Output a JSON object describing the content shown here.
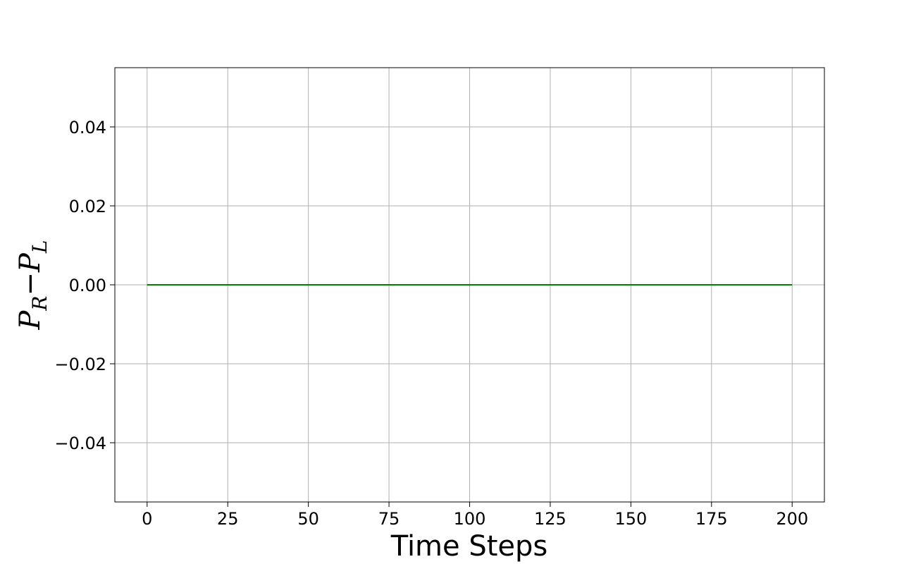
{
  "chart_data": {
    "type": "line",
    "xlabel": "Time Steps",
    "ylabel": {
      "main_left": "P",
      "sub_left": "R",
      "operator": "−",
      "main_right": "P",
      "sub_right": "L"
    },
    "xlim": [
      -10,
      210
    ],
    "ylim": [
      -0.055,
      0.055
    ],
    "x_ticks": [
      0,
      25,
      50,
      75,
      100,
      125,
      150,
      175,
      200
    ],
    "x_tick_labels": [
      "0",
      "25",
      "50",
      "75",
      "100",
      "125",
      "150",
      "175",
      "200"
    ],
    "y_ticks": [
      0.04,
      0.02,
      0.0,
      -0.02,
      -0.04
    ],
    "y_tick_labels": [
      "0.04",
      "0.02",
      "0.00",
      "−0.02",
      "−0.04"
    ],
    "grid": true,
    "series": [
      {
        "color": "#008000",
        "x": [
          0,
          25,
          50,
          75,
          100,
          125,
          150,
          175,
          200
        ],
        "y": [
          0,
          0,
          0,
          0,
          0,
          0,
          0,
          0,
          0
        ]
      }
    ]
  }
}
